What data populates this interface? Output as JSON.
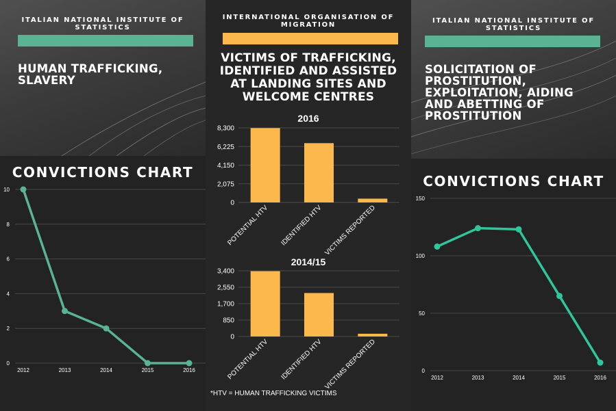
{
  "left": {
    "kicker": "ITALIAN NATIONAL INSTITUTE OF STATISTICS",
    "title": "HUMAN TRAFFICKING, SLAVERY",
    "chart_heading": "CONVICTIONS CHART"
  },
  "middle": {
    "kicker": "INTERNATIONAL ORGANISATION OF MIGRATION",
    "title": "VICTIMS OF TRAFFICKING, IDENTIFIED AND ASSISTED AT LANDING SITES AND WELCOME CENTRES",
    "footnote": "*HTV = HUMAN TRAFFICKING VICTIMS"
  },
  "right": {
    "kicker": "ITALIAN NATIONAL INSTITUTE OF STATISTICS",
    "title": "SOLICITATION OF PROSTITUTION, EXPLOITATION, AIDING AND ABETTING OF PROSTITUTION",
    "chart_heading": "CONVICTIONS CHART"
  },
  "colors": {
    "green": "#5ab493",
    "teal": "#2fc69c",
    "yellow": "#fbb84c",
    "grid": "#4a4a4a"
  },
  "chart_data": [
    {
      "id": "left-line",
      "type": "line",
      "title": "CONVICTIONS CHART",
      "x": [
        "2012",
        "2013",
        "2014",
        "2015",
        "2016"
      ],
      "values": [
        10,
        3,
        2,
        0,
        0
      ],
      "yticks": [
        "0",
        "2",
        "4",
        "6",
        "8",
        "10"
      ],
      "ylim": [
        0,
        10
      ]
    },
    {
      "id": "mid-bar-2016",
      "type": "bar",
      "title": "2016",
      "categories": [
        "POTENTIAL HTV",
        "IDENTIFIED HTV",
        "VICTIMS REPORTED"
      ],
      "values": [
        8277,
        6600,
        420
      ],
      "yticks": [
        "0",
        "2,075",
        "4,150",
        "6,225",
        "8,300"
      ],
      "ylim": [
        0,
        8300
      ]
    },
    {
      "id": "mid-bar-201415",
      "type": "bar",
      "title": "2014/15",
      "categories": [
        "POTENTIAL HTV",
        "IDENTIFIED HTV",
        "VICTIMS REPORTED"
      ],
      "values": [
        3380,
        2250,
        140
      ],
      "yticks": [
        "0",
        "850",
        "1,700",
        "2,550",
        "3,400"
      ],
      "ylim": [
        0,
        3400
      ]
    },
    {
      "id": "right-line",
      "type": "line",
      "title": "CONVICTIONS CHART",
      "x": [
        "2012",
        "2013",
        "2014",
        "2015",
        "2016"
      ],
      "values": [
        108,
        124,
        123,
        65,
        7
      ],
      "yticks": [
        "0",
        "50",
        "100",
        "150"
      ],
      "ylim": [
        0,
        150
      ]
    }
  ]
}
